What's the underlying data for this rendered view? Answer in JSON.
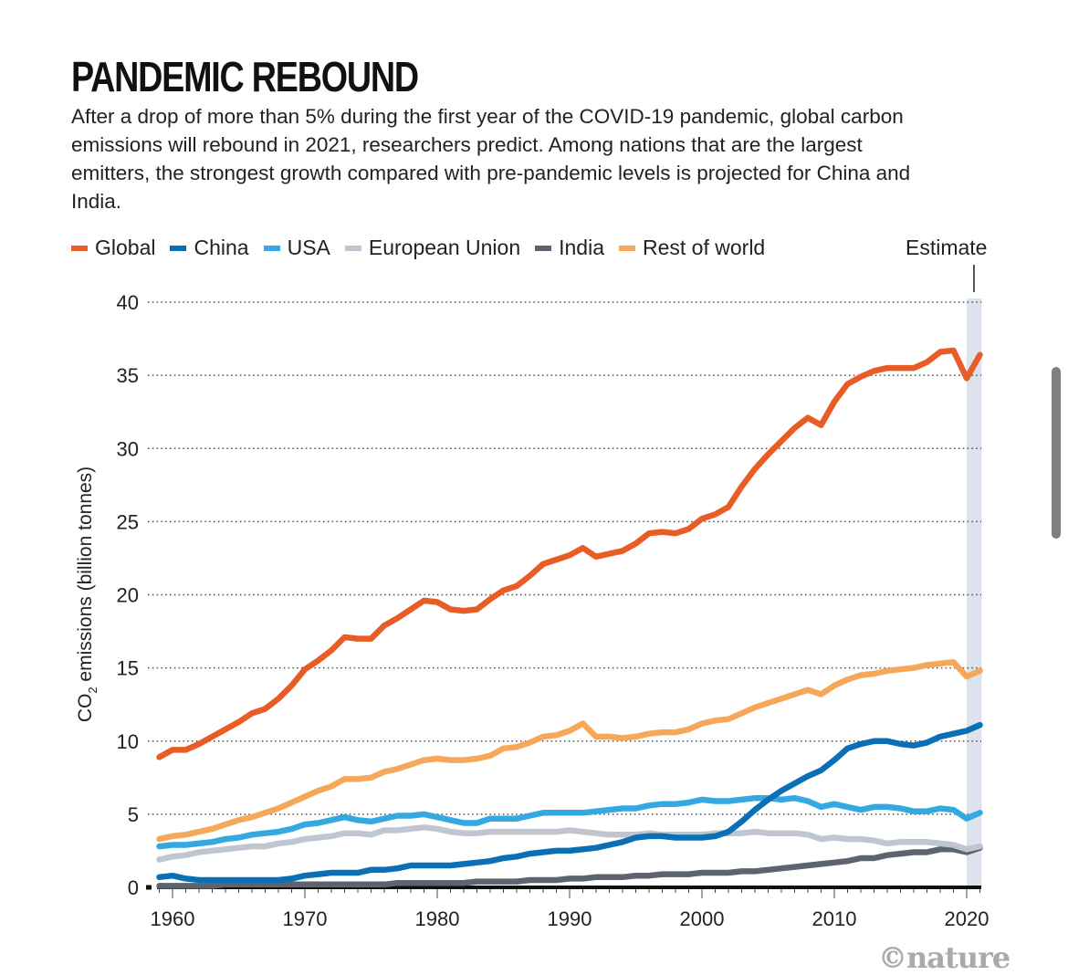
{
  "header": {
    "title": "PANDEMIC REBOUND",
    "subtitle": "After a drop of more than 5% during the first year of the COVID-19 pandemic, global carbon emissions will rebound in 2021, researchers predict. Among nations that are the largest emitters, the strongest growth compared with pre-pandemic levels is projected for China and India."
  },
  "credit": "©nature",
  "chart_data": {
    "type": "line",
    "title": "PANDEMIC REBOUND",
    "xlabel": "",
    "ylabel": "CO2 emissions (billion tonnes)",
    "ylabel_main": "CO",
    "ylabel_sub": "2",
    "ylabel_rest": " emissions (billion tonnes)",
    "xlim": [
      1959,
      2021
    ],
    "ylim": [
      0,
      40
    ],
    "grid": "horizontal-dotted",
    "legend_position": "top",
    "y_ticks": [
      0,
      5,
      10,
      15,
      20,
      25,
      30,
      35,
      40
    ],
    "x_ticks": [
      1960,
      1970,
      1980,
      1990,
      2000,
      2010,
      2020
    ],
    "annotation": {
      "label": "Estimate",
      "x_range": [
        2020,
        2021
      ]
    },
    "x": [
      1959,
      1960,
      1961,
      1962,
      1963,
      1964,
      1965,
      1966,
      1967,
      1968,
      1969,
      1970,
      1971,
      1972,
      1973,
      1974,
      1975,
      1976,
      1977,
      1978,
      1979,
      1980,
      1981,
      1982,
      1983,
      1984,
      1985,
      1986,
      1987,
      1988,
      1989,
      1990,
      1991,
      1992,
      1993,
      1994,
      1995,
      1996,
      1997,
      1998,
      1999,
      2000,
      2001,
      2002,
      2003,
      2004,
      2005,
      2006,
      2007,
      2008,
      2009,
      2010,
      2011,
      2012,
      2013,
      2014,
      2015,
      2016,
      2017,
      2018,
      2019,
      2020,
      2021
    ],
    "series": [
      {
        "name": "Global",
        "color": "#e85d26",
        "values": [
          8.9,
          9.4,
          9.4,
          9.8,
          10.3,
          10.8,
          11.3,
          11.9,
          12.2,
          12.9,
          13.8,
          14.9,
          15.5,
          16.2,
          17.1,
          17.0,
          17.0,
          17.9,
          18.4,
          19.0,
          19.6,
          19.5,
          19.0,
          18.9,
          19.0,
          19.7,
          20.3,
          20.6,
          21.3,
          22.1,
          22.4,
          22.7,
          23.2,
          22.6,
          22.8,
          23.0,
          23.5,
          24.2,
          24.3,
          24.2,
          24.5,
          25.2,
          25.5,
          26.0,
          27.4,
          28.6,
          29.6,
          30.5,
          31.4,
          32.1,
          31.6,
          33.2,
          34.4,
          34.9,
          35.3,
          35.5,
          35.5,
          35.5,
          35.9,
          36.6,
          36.7,
          34.8,
          36.4
        ]
      },
      {
        "name": "Rest of world",
        "color": "#f5a85a",
        "values": [
          3.3,
          3.5,
          3.6,
          3.8,
          4.0,
          4.3,
          4.6,
          4.8,
          5.1,
          5.4,
          5.8,
          6.2,
          6.6,
          6.9,
          7.4,
          7.4,
          7.5,
          7.9,
          8.1,
          8.4,
          8.7,
          8.8,
          8.7,
          8.7,
          8.8,
          9.0,
          9.5,
          9.6,
          9.9,
          10.3,
          10.4,
          10.7,
          11.2,
          10.3,
          10.3,
          10.2,
          10.3,
          10.5,
          10.6,
          10.6,
          10.8,
          11.2,
          11.4,
          11.5,
          11.9,
          12.3,
          12.6,
          12.9,
          13.2,
          13.5,
          13.2,
          13.8,
          14.2,
          14.5,
          14.6,
          14.8,
          14.9,
          15.0,
          15.2,
          15.3,
          15.4,
          14.4,
          14.8
        ]
      },
      {
        "name": "China",
        "color": "#0a6fb5",
        "values": [
          0.7,
          0.8,
          0.6,
          0.5,
          0.5,
          0.5,
          0.5,
          0.5,
          0.5,
          0.5,
          0.6,
          0.8,
          0.9,
          1.0,
          1.0,
          1.0,
          1.2,
          1.2,
          1.3,
          1.5,
          1.5,
          1.5,
          1.5,
          1.6,
          1.7,
          1.8,
          2.0,
          2.1,
          2.3,
          2.4,
          2.5,
          2.5,
          2.6,
          2.7,
          2.9,
          3.1,
          3.4,
          3.5,
          3.5,
          3.4,
          3.4,
          3.4,
          3.5,
          3.8,
          4.5,
          5.3,
          6.0,
          6.6,
          7.1,
          7.6,
          8.0,
          8.7,
          9.5,
          9.8,
          10.0,
          10.0,
          9.8,
          9.7,
          9.9,
          10.3,
          10.5,
          10.7,
          11.1
        ]
      },
      {
        "name": "USA",
        "color": "#34a9e1",
        "values": [
          2.8,
          2.9,
          2.9,
          3.0,
          3.1,
          3.3,
          3.4,
          3.6,
          3.7,
          3.8,
          4.0,
          4.3,
          4.4,
          4.6,
          4.8,
          4.6,
          4.5,
          4.7,
          4.9,
          4.9,
          5.0,
          4.8,
          4.6,
          4.4,
          4.4,
          4.7,
          4.7,
          4.7,
          4.9,
          5.1,
          5.1,
          5.1,
          5.1,
          5.2,
          5.3,
          5.4,
          5.4,
          5.6,
          5.7,
          5.7,
          5.8,
          6.0,
          5.9,
          5.9,
          6.0,
          6.1,
          6.1,
          6.0,
          6.1,
          5.9,
          5.5,
          5.7,
          5.5,
          5.3,
          5.5,
          5.5,
          5.4,
          5.2,
          5.2,
          5.4,
          5.3,
          4.7,
          5.1
        ]
      },
      {
        "name": "European Union",
        "color": "#c0c6cf",
        "values": [
          1.9,
          2.1,
          2.2,
          2.4,
          2.5,
          2.6,
          2.7,
          2.8,
          2.8,
          3.0,
          3.1,
          3.3,
          3.4,
          3.5,
          3.7,
          3.7,
          3.6,
          3.9,
          3.9,
          4.0,
          4.1,
          4.0,
          3.8,
          3.7,
          3.7,
          3.8,
          3.8,
          3.8,
          3.8,
          3.8,
          3.8,
          3.9,
          3.8,
          3.7,
          3.6,
          3.6,
          3.6,
          3.7,
          3.6,
          3.6,
          3.6,
          3.6,
          3.7,
          3.7,
          3.7,
          3.8,
          3.7,
          3.7,
          3.7,
          3.6,
          3.3,
          3.4,
          3.3,
          3.3,
          3.2,
          3.0,
          3.1,
          3.1,
          3.1,
          3.0,
          2.9,
          2.6,
          2.8
        ]
      },
      {
        "name": "India",
        "color": "#5d6470",
        "values": [
          0.1,
          0.1,
          0.1,
          0.1,
          0.1,
          0.2,
          0.2,
          0.2,
          0.2,
          0.2,
          0.2,
          0.2,
          0.2,
          0.2,
          0.2,
          0.2,
          0.2,
          0.2,
          0.3,
          0.3,
          0.3,
          0.3,
          0.3,
          0.3,
          0.4,
          0.4,
          0.4,
          0.4,
          0.5,
          0.5,
          0.5,
          0.6,
          0.6,
          0.7,
          0.7,
          0.7,
          0.8,
          0.8,
          0.9,
          0.9,
          0.9,
          1.0,
          1.0,
          1.0,
          1.1,
          1.1,
          1.2,
          1.3,
          1.4,
          1.5,
          1.6,
          1.7,
          1.8,
          2.0,
          2.0,
          2.2,
          2.3,
          2.4,
          2.4,
          2.6,
          2.6,
          2.4,
          2.7
        ]
      }
    ]
  },
  "legend": {
    "items": [
      {
        "label": "Global",
        "color": "#e85d26"
      },
      {
        "label": "China",
        "color": "#0a6fb5"
      },
      {
        "label": "USA",
        "color": "#34a9e1"
      },
      {
        "label": "European Union",
        "color": "#c0c6cf"
      },
      {
        "label": "India",
        "color": "#5d6470"
      },
      {
        "label": "Rest of world",
        "color": "#f5a85a"
      }
    ],
    "estimate_label": "Estimate"
  }
}
